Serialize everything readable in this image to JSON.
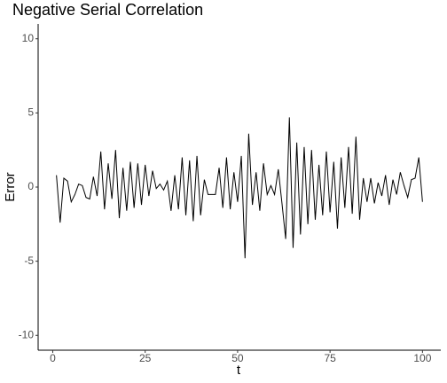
{
  "chart_data": {
    "type": "line",
    "title": "Negative Serial Correlation",
    "x_label": "t",
    "y_label": "Error",
    "x": [
      1,
      2,
      3,
      4,
      5,
      6,
      7,
      8,
      9,
      10,
      11,
      12,
      13,
      14,
      15,
      16,
      17,
      18,
      19,
      20,
      21,
      22,
      23,
      24,
      25,
      26,
      27,
      28,
      29,
      30,
      31,
      32,
      33,
      34,
      35,
      36,
      37,
      38,
      39,
      40,
      41,
      42,
      43,
      44,
      45,
      46,
      47,
      48,
      49,
      50,
      51,
      52,
      53,
      54,
      55,
      56,
      57,
      58,
      59,
      60,
      61,
      62,
      63,
      64,
      65,
      66,
      67,
      68,
      69,
      70,
      71,
      72,
      73,
      74,
      75,
      76,
      77,
      78,
      79,
      80,
      81,
      82,
      83,
      84,
      85,
      86,
      87,
      88,
      89,
      90,
      91,
      92,
      93,
      94,
      95,
      96,
      97,
      98,
      99,
      100
    ],
    "series": [
      {
        "name": "Error",
        "color": "#000000",
        "values": [
          0.8,
          -2.4,
          0.6,
          0.4,
          -1.0,
          -0.5,
          0.2,
          0.1,
          -0.7,
          -0.8,
          0.7,
          -0.6,
          2.4,
          -1.5,
          1.6,
          -0.8,
          2.5,
          -2.1,
          1.3,
          -1.6,
          1.7,
          -1.4,
          1.6,
          -1.2,
          1.5,
          -0.6,
          1.1,
          -0.1,
          0.2,
          -0.2,
          0.4,
          -1.6,
          0.8,
          -1.5,
          2.0,
          -1.9,
          1.8,
          -2.3,
          2.1,
          -1.9,
          0.5,
          -0.5,
          -0.5,
          -0.5,
          1.3,
          -1.4,
          2.0,
          -1.5,
          1.0,
          -1.0,
          2.1,
          -4.8,
          3.6,
          -1.2,
          1.0,
          -1.6,
          1.6,
          -0.5,
          0.1,
          -0.5,
          1.2,
          -1.1,
          -3.5,
          4.7,
          -4.1,
          3.0,
          -3.2,
          2.7,
          -2.5,
          2.5,
          -2.2,
          1.5,
          -1.9,
          2.4,
          -1.7,
          1.7,
          -2.8,
          2.0,
          -1.4,
          2.7,
          -1.8,
          3.4,
          -2.2,
          0.6,
          -1.0,
          0.6,
          -1.1,
          0.3,
          -0.6,
          0.8,
          -1.2,
          0.5,
          -0.5,
          1.0,
          0.1,
          -0.7,
          0.5,
          0.6,
          2.0,
          -1.0
        ]
      }
    ],
    "xlim": [
      -3.95,
      104.95
    ],
    "xticks": [
      0,
      25,
      50,
      75,
      100
    ],
    "ylim": [
      -11,
      11
    ],
    "yticks": [
      -10,
      -5,
      0,
      5,
      10
    ],
    "grid": false
  }
}
